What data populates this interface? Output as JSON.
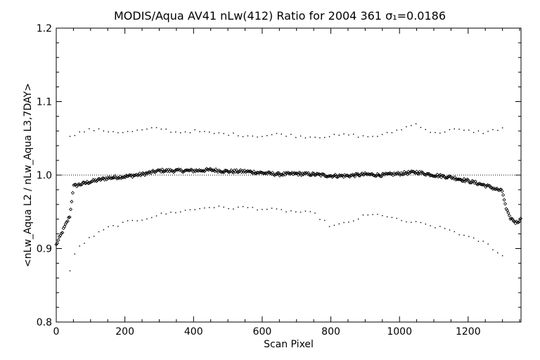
{
  "chart_data": {
    "type": "scatter",
    "title": "MODIS/Aqua AV41 nLw(412) Ratio for 2004 361 σ₁=0.0186",
    "xlabel": "Scan Pixel",
    "ylabel": "<nLw_Aqua L2 / nLw_Aqua L3,7DAY>",
    "xlim": [
      0,
      1354
    ],
    "ylim": [
      0.8,
      1.2
    ],
    "x_ticks": [
      "0",
      "200",
      "400",
      "600",
      "800",
      "1000",
      "1200"
    ],
    "y_ticks": [
      "0.8",
      "0.9",
      "1.0",
      "1.1",
      "1.2"
    ],
    "reference_line": 1.0,
    "grid": false,
    "series": [
      {
        "role": "mean ratio (diamond markers)",
        "x": [
          0,
          20,
          40,
          50,
          100,
          150,
          200,
          250,
          300,
          350,
          400,
          450,
          500,
          550,
          600,
          650,
          700,
          750,
          800,
          850,
          900,
          950,
          1000,
          1050,
          1100,
          1150,
          1200,
          1250,
          1300,
          1310,
          1320,
          1340,
          1354
        ],
        "y": [
          0.905,
          0.925,
          0.945,
          0.985,
          0.991,
          0.996,
          0.998,
          1.001,
          1.006,
          1.006,
          1.006,
          1.007,
          1.005,
          1.005,
          1.003,
          1.001,
          1.002,
          1.001,
          0.999,
          0.999,
          1.001,
          1.0,
          1.002,
          1.004,
          1.0,
          0.997,
          0.992,
          0.986,
          0.978,
          0.955,
          0.943,
          0.935,
          0.94
        ]
      },
      {
        "role": "upper band (dots)",
        "x": [
          40,
          100,
          150,
          200,
          250,
          300,
          350,
          400,
          450,
          500,
          550,
          600,
          650,
          700,
          750,
          800,
          850,
          900,
          950,
          1000,
          1050,
          1100,
          1150,
          1200,
          1250,
          1300
        ],
        "y": [
          1.054,
          1.062,
          1.06,
          1.058,
          1.061,
          1.064,
          1.058,
          1.06,
          1.057,
          1.056,
          1.054,
          1.053,
          1.056,
          1.053,
          1.052,
          1.053,
          1.055,
          1.052,
          1.054,
          1.062,
          1.07,
          1.056,
          1.062,
          1.06,
          1.058,
          1.064
        ]
      },
      {
        "role": "lower band (dots)",
        "x": [
          40,
          60,
          100,
          150,
          200,
          250,
          300,
          350,
          400,
          450,
          500,
          550,
          600,
          650,
          700,
          750,
          800,
          850,
          900,
          950,
          1000,
          1050,
          1100,
          1150,
          1200,
          1250,
          1300
        ],
        "y": [
          0.87,
          0.9,
          0.915,
          0.928,
          0.935,
          0.94,
          0.946,
          0.95,
          0.953,
          0.957,
          0.955,
          0.956,
          0.954,
          0.952,
          0.95,
          0.948,
          0.93,
          0.935,
          0.945,
          0.946,
          0.938,
          0.935,
          0.93,
          0.925,
          0.915,
          0.908,
          0.89
        ]
      }
    ]
  }
}
